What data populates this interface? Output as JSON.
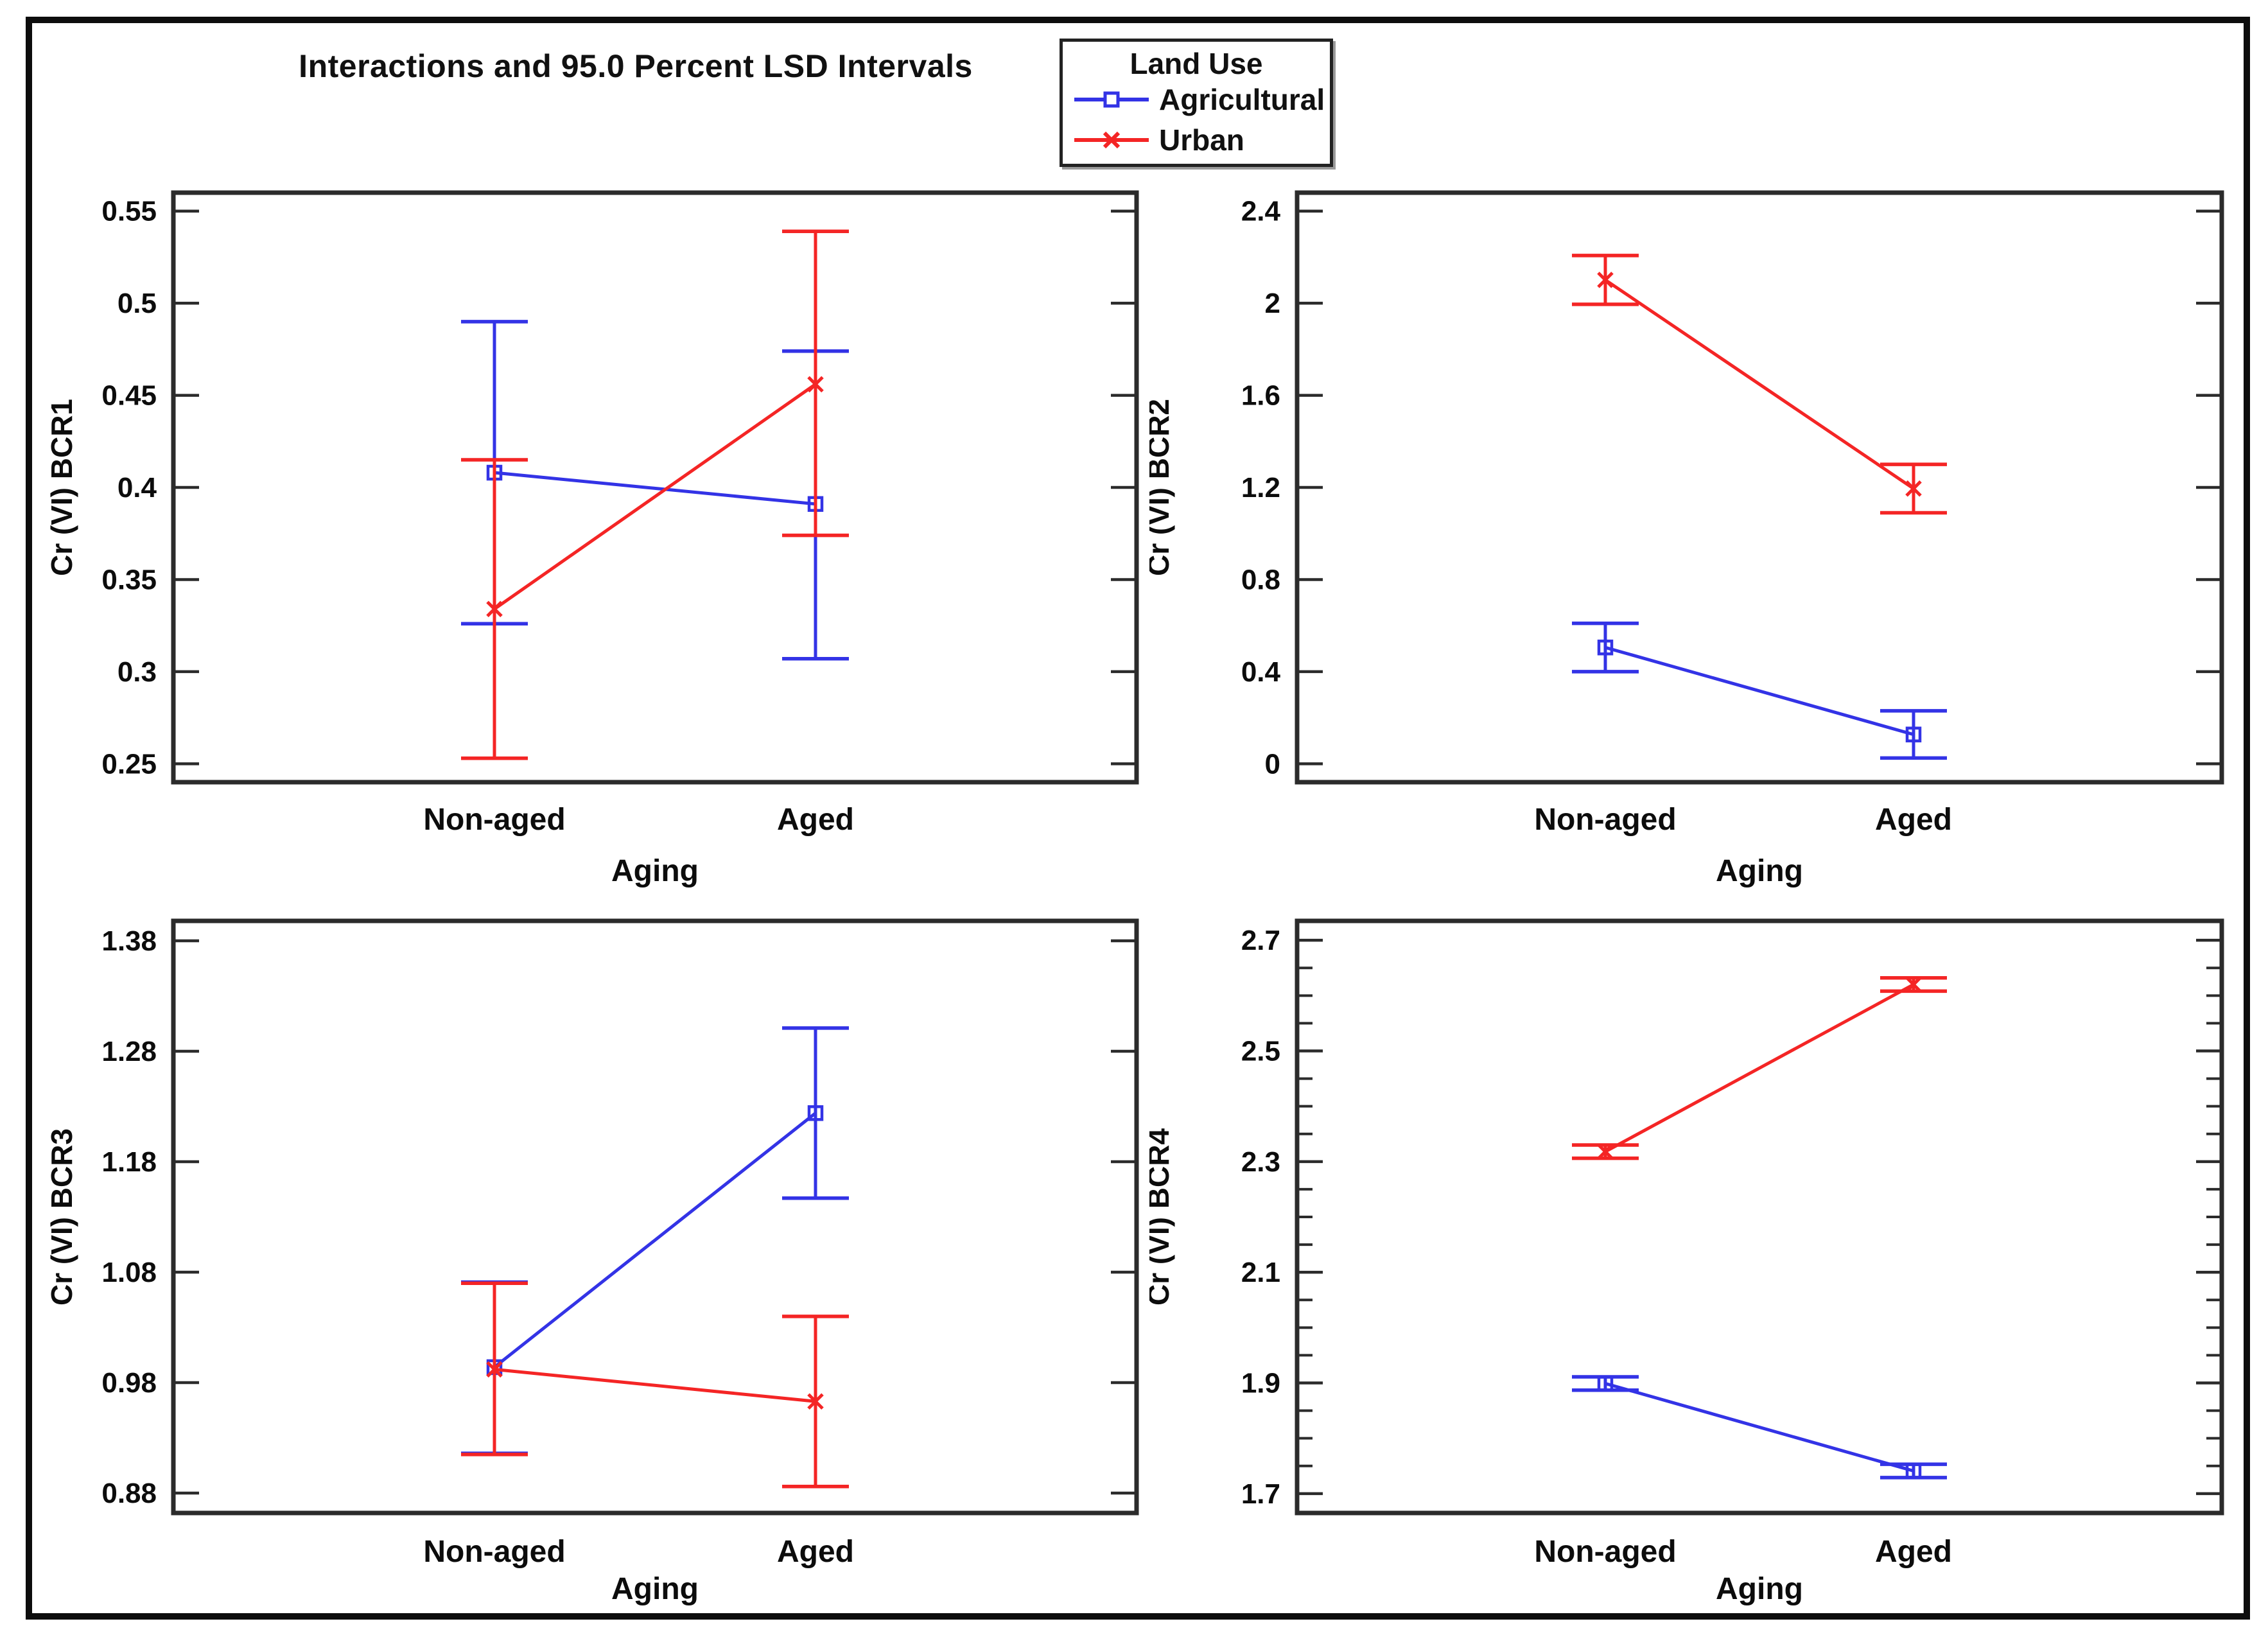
{
  "page": {
    "title": "Interactions and 95.0 Percent LSD Intervals"
  },
  "legend": {
    "title": "Land Use",
    "entries": [
      {
        "label": "Agricultural",
        "color": "#3333e6",
        "marker": "square"
      },
      {
        "label": "Urban",
        "color": "#f42525",
        "marker": "x"
      }
    ]
  },
  "chart_data": [
    {
      "type": "line",
      "panel": "top-left",
      "ylabel": "Cr (VI) BCR1",
      "xlabel": "Aging",
      "categories": [
        "Non-aged",
        "Aged"
      ],
      "ylim": [
        0.24,
        0.56
      ],
      "yticks": [
        0.25,
        0.3,
        0.35,
        0.4,
        0.45,
        0.5,
        0.55
      ],
      "ytick_labels": [
        "0.25",
        "0.3",
        "0.35",
        "0.4",
        "0.45",
        "0.5",
        "0.55"
      ],
      "yticks_minor": [],
      "series": [
        {
          "name": "Agricultural",
          "values": [
            0.408,
            0.391
          ],
          "lower": [
            0.326,
            0.307
          ],
          "upper": [
            0.49,
            0.474
          ]
        },
        {
          "name": "Urban",
          "values": [
            0.334,
            0.456
          ],
          "lower": [
            0.253,
            0.374
          ],
          "upper": [
            0.415,
            0.539
          ]
        }
      ]
    },
    {
      "type": "line",
      "panel": "top-right",
      "ylabel": "Cr (VI) BCR2",
      "xlabel": "Aging",
      "categories": [
        "Non-aged",
        "Aged"
      ],
      "ylim": [
        -0.08,
        2.48
      ],
      "yticks": [
        0,
        0.4,
        0.8,
        1.2,
        1.6,
        2,
        2.4
      ],
      "ytick_labels": [
        "0",
        "0.4",
        "0.8",
        "1.2",
        "1.6",
        "2",
        "2.4"
      ],
      "yticks_minor": [],
      "series": [
        {
          "name": "Agricultural",
          "values": [
            0.505,
            0.127
          ],
          "lower": [
            0.4,
            0.025
          ],
          "upper": [
            0.61,
            0.23
          ]
        },
        {
          "name": "Urban",
          "values": [
            2.101,
            1.195
          ],
          "lower": [
            1.995,
            1.09
          ],
          "upper": [
            2.207,
            1.3
          ]
        }
      ]
    },
    {
      "type": "line",
      "panel": "bottom-left",
      "ylabel": "Cr (VI) BCR3",
      "xlabel": "Aging",
      "categories": [
        "Non-aged",
        "Aged"
      ],
      "ylim": [
        0.862,
        1.398
      ],
      "yticks": [
        0.88,
        0.98,
        1.08,
        1.18,
        1.28,
        1.38
      ],
      "ytick_labels": [
        "0.88",
        "0.98",
        "1.08",
        "1.18",
        "1.28",
        "1.38"
      ],
      "yticks_minor": [],
      "series": [
        {
          "name": "Agricultural",
          "values": [
            0.994,
            1.224
          ],
          "lower": [
            0.916,
            1.147
          ],
          "upper": [
            1.071,
            1.301
          ]
        },
        {
          "name": "Urban",
          "values": [
            0.992,
            0.963
          ],
          "lower": [
            0.915,
            0.886
          ],
          "upper": [
            1.07,
            1.04
          ]
        }
      ]
    },
    {
      "type": "line",
      "panel": "bottom-right",
      "ylabel": "Cr (VI) BCR4",
      "xlabel": "Aging",
      "categories": [
        "Non-aged",
        "Aged"
      ],
      "ylim": [
        1.665,
        2.735
      ],
      "yticks": [
        1.7,
        1.9,
        2.1,
        2.3,
        2.5,
        2.7
      ],
      "ytick_labels": [
        "1.7",
        "1.9",
        "2.1",
        "2.3",
        "2.5",
        "2.7"
      ],
      "yticks_minor": [
        1.75,
        1.8,
        1.85,
        1.95,
        2.0,
        2.05,
        2.15,
        2.2,
        2.25,
        2.35,
        2.4,
        2.45,
        2.55,
        2.6,
        2.65
      ],
      "series": [
        {
          "name": "Agricultural",
          "values": [
            1.899,
            1.741
          ],
          "lower": [
            1.887,
            1.729
          ],
          "upper": [
            1.911,
            1.753
          ]
        },
        {
          "name": "Urban",
          "values": [
            2.318,
            2.62
          ],
          "lower": [
            2.306,
            2.608
          ],
          "upper": [
            2.33,
            2.632
          ]
        }
      ]
    }
  ]
}
